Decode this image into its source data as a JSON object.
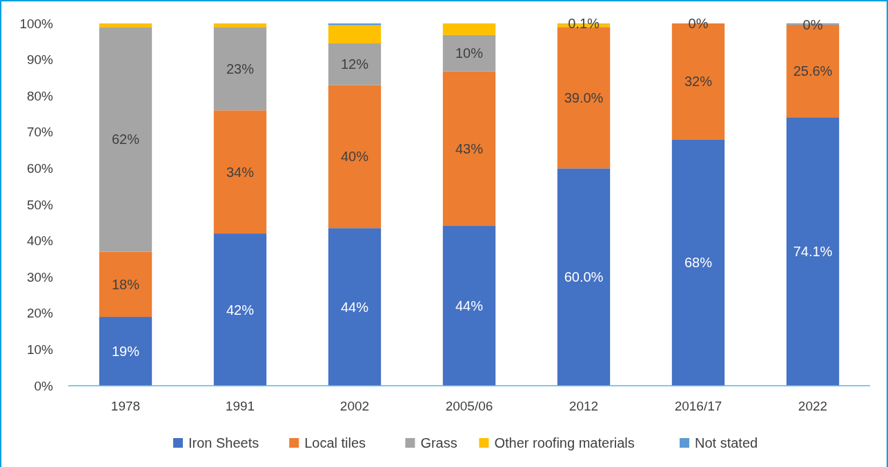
{
  "chart_data": {
    "type": "bar",
    "stacked": true,
    "categories": [
      "1978",
      "1991",
      "2002",
      "2005/06",
      "2012",
      "2016/17",
      "2022"
    ],
    "series": [
      {
        "name": "Iron Sheets",
        "color": "#4472c4",
        "values": [
          19,
          42,
          43.5,
          44.1,
          60.0,
          68,
          74.1
        ],
        "value_labels": [
          "19%",
          "42%",
          "44%",
          "44%",
          "60.0%",
          "68%",
          "74.1%"
        ]
      },
      {
        "name": "Local tiles",
        "color": "#ed7d31",
        "values": [
          18,
          34,
          39.5,
          42.7,
          39.0,
          32,
          25.6
        ],
        "value_labels": [
          "18%",
          "34%",
          "40%",
          "43%",
          "39.0%",
          "32%",
          "25.6%"
        ]
      },
      {
        "name": "Grass",
        "color": "#a5a5a5",
        "values": [
          62,
          23,
          11.5,
          10,
          0,
          0,
          0
        ],
        "value_labels": [
          "62%",
          "23%",
          "12%",
          "10%",
          null,
          null,
          null
        ]
      },
      {
        "name": "Other roofing materials",
        "color": "#ffc000",
        "values": [
          1,
          1,
          5,
          3.2,
          0.9,
          0,
          0
        ],
        "value_labels": [
          null,
          null,
          null,
          null,
          null,
          "0%",
          "0%"
        ]
      },
      {
        "name": "Not stated",
        "color": "#5b9bd5",
        "values": [
          0,
          0,
          0.5,
          0,
          0.1,
          0,
          0.3
        ],
        "value_labels": [
          null,
          null,
          null,
          null,
          "0.1%",
          null,
          null
        ]
      }
    ],
    "ylim": [
      0,
      100
    ],
    "yticks": [
      {
        "value": 0,
        "label": "0%"
      },
      {
        "value": 10,
        "label": "10%"
      },
      {
        "value": 20,
        "label": "20%"
      },
      {
        "value": 30,
        "label": "30%"
      },
      {
        "value": 40,
        "label": "40%"
      },
      {
        "value": 50,
        "label": "50%"
      },
      {
        "value": 60,
        "label": "60%"
      },
      {
        "value": 70,
        "label": "70%"
      },
      {
        "value": 80,
        "label": "80%"
      },
      {
        "value": 90,
        "label": "90%"
      },
      {
        "value": 100,
        "label": "100%"
      }
    ],
    "grid": false,
    "legend": "bottom"
  }
}
